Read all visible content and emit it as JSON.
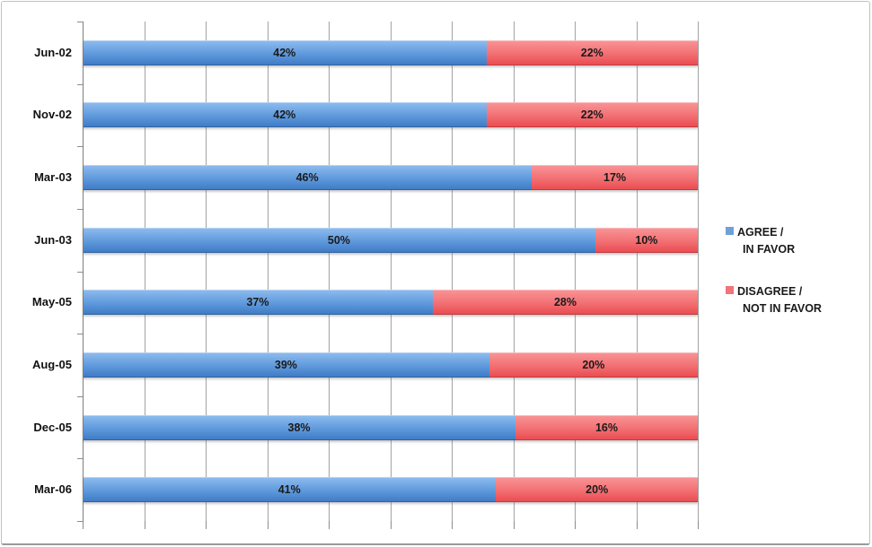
{
  "chart_data": {
    "type": "bar",
    "orientation": "horizontal",
    "stacking": "percent",
    "title": "",
    "xlabel": "",
    "ylabel": "",
    "categories": [
      "Jun-02",
      "Nov-02",
      "Mar-03",
      "Jun-03",
      "May-05",
      "Aug-05",
      "Dec-05",
      "Mar-06"
    ],
    "series": [
      {
        "name": "AGREE / IN FAVOR",
        "legend_lines": [
          "AGREE /",
          "IN FAVOR"
        ],
        "values": [
          42,
          42,
          46,
          50,
          37,
          39,
          38,
          41
        ],
        "marker_color": "#6FA0D8"
      },
      {
        "name": "DISAGREE / NOT IN FAVOR",
        "legend_lines": [
          "DISAGREE /",
          "NOT IN FAVOR"
        ],
        "values": [
          22,
          22,
          17,
          10,
          28,
          20,
          16,
          20
        ],
        "marker_color": "#F0747A"
      }
    ],
    "value_suffix": "%",
    "legend_position": "right",
    "grid": true,
    "gridline_count": 11,
    "x_axis_labels_visible": false
  },
  "palette": {
    "agree_top": "#8FBCEE",
    "agree_mid": "#5E99DC",
    "agree_bottom": "#3D79C4",
    "disagree_top": "#F99597",
    "disagree_mid": "#F26F72",
    "disagree_bottom": "#E9494F",
    "gridline": "#A3A3A3",
    "axis": "#7F7F7F",
    "label_text": "#1A1A1A"
  }
}
